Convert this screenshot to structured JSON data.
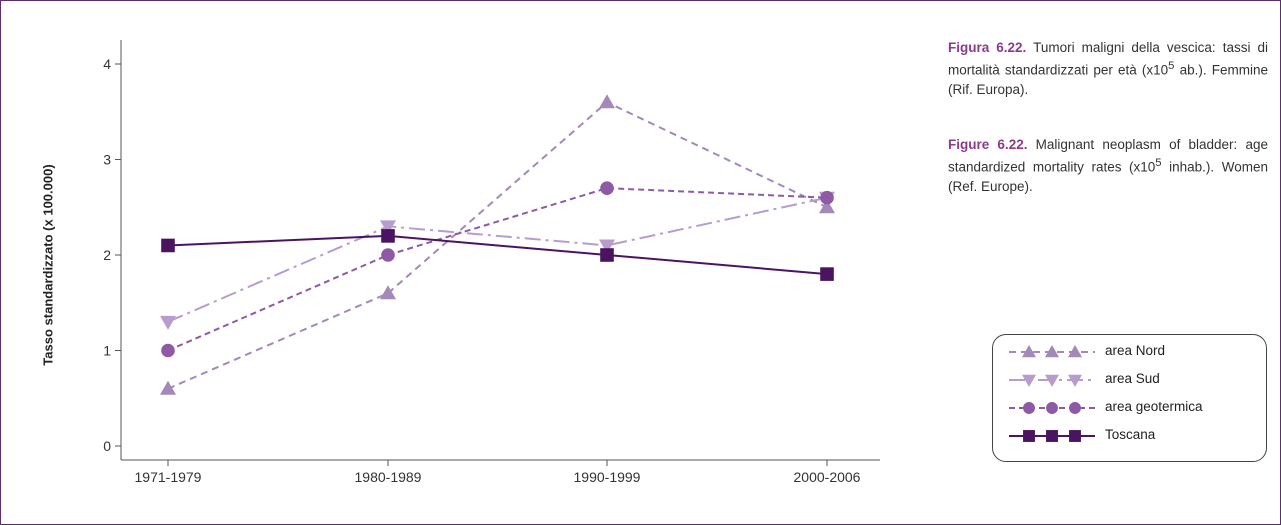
{
  "caption": {
    "it_fig": "Figura 6.22.",
    "it_text_a": " Tumori maligni della vescica: tassi di mortalità standardizzati per età (x10",
    "it_sup": "5",
    "it_text_b": " ab.). Femmine (Rif. Europa).",
    "en_fig": "Figure 6.22.",
    "en_text_a": " Malignant neoplasm of bladder: age standardized mortality rates (x10",
    "en_sup": "5",
    "en_text_b": " inhab.). Women (Ref. Europe)."
  },
  "chart_data": {
    "type": "line",
    "title": "",
    "xlabel": "",
    "ylabel": "Tasso standardizzato (x 100.000)",
    "categories": [
      "1971-1979",
      "1980-1989",
      "1990-1999",
      "2000-2006"
    ],
    "ylim": [
      0,
      4
    ],
    "yticks": [
      "0",
      "1",
      "2",
      "3",
      "4"
    ],
    "grid": false,
    "legend_position": "right",
    "series": [
      {
        "name": "area Nord",
        "values": [
          0.6,
          1.6,
          3.6,
          2.5
        ],
        "color": "#a389b8",
        "dash": "7,5",
        "marker": "triangle-up"
      },
      {
        "name": "area Sud",
        "values": [
          1.3,
          2.3,
          2.1,
          2.6
        ],
        "color": "#b79ccc",
        "dash": "16,5,3,5",
        "marker": "triangle-down"
      },
      {
        "name": "area geotermica",
        "values": [
          1.0,
          2.0,
          2.7,
          2.6
        ],
        "color": "#8e5aa6",
        "dash": "6,4",
        "marker": "circle"
      },
      {
        "name": "Toscana",
        "values": [
          2.1,
          2.2,
          2.0,
          1.8
        ],
        "color": "#4b1460",
        "dash": "",
        "marker": "square"
      }
    ]
  }
}
